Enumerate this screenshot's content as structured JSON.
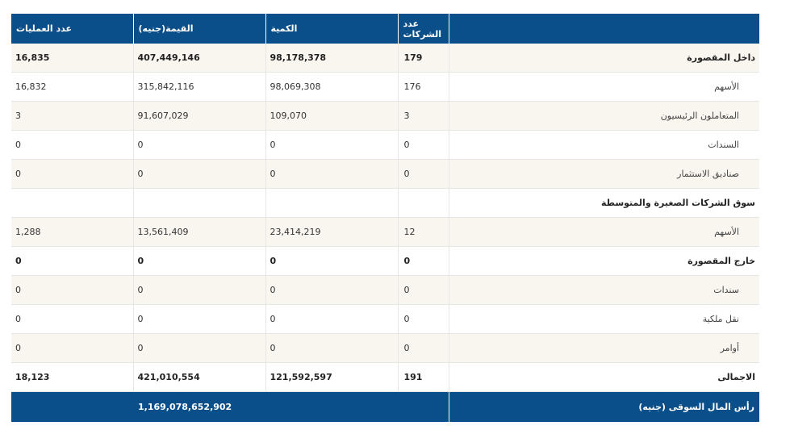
{
  "header": {
    "label": "",
    "companies": "عدد الشركات",
    "quantity": "الكمية",
    "value": "القيمة(جنيه)",
    "trades": "عدد العمليات"
  },
  "rows": [
    {
      "label": "داخل المقصورة",
      "companies": "179",
      "quantity": "98,178,378",
      "value": "407,449,146",
      "trades": "16,835"
    },
    {
      "label": "الأسهم",
      "companies": "176",
      "quantity": "98,069,308",
      "value": "315,842,116",
      "trades": "16,832"
    },
    {
      "label": "المتعاملون الرئيسيون",
      "companies": "3",
      "quantity": "109,070",
      "value": "91,607,029",
      "trades": "3"
    },
    {
      "label": "السندات",
      "companies": "0",
      "quantity": "0",
      "value": "0",
      "trades": "0"
    },
    {
      "label": "صناديق الاستثمار",
      "companies": "0",
      "quantity": "0",
      "value": "0",
      "trades": "0"
    },
    {
      "label": "سوق الشركات الصغيرة والمتوسطة",
      "companies": "",
      "quantity": "",
      "value": "",
      "trades": ""
    },
    {
      "label": "الأسهم",
      "companies": "12",
      "quantity": "23,414,219",
      "value": "13,561,409",
      "trades": "1,288"
    },
    {
      "label": "خارج المقصورة",
      "companies": "0",
      "quantity": "0",
      "value": "0",
      "trades": "0"
    },
    {
      "label": "سندات",
      "companies": "0",
      "quantity": "0",
      "value": "0",
      "trades": "0"
    },
    {
      "label": "نقل ملكية",
      "companies": "0",
      "quantity": "0",
      "value": "0",
      "trades": "0"
    },
    {
      "label": "أوامر",
      "companies": "0",
      "quantity": "0",
      "value": "0",
      "trades": "0"
    },
    {
      "label": "الاجمالى",
      "companies": "191",
      "quantity": "121,592,597",
      "value": "421,010,554",
      "trades": "18,123"
    }
  ],
  "footer": {
    "label": "رأس المال السوقى (جنيه)",
    "value": "1,169,078,652,902"
  }
}
